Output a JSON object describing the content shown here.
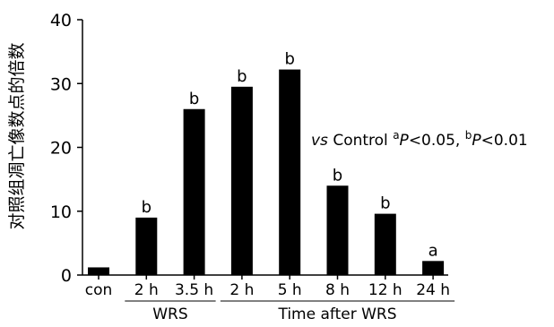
{
  "chart_data": {
    "type": "bar",
    "ylabel": "对照组凋亡像数点的倍数",
    "xlabel": "",
    "ylim": [
      0,
      40
    ],
    "yticks": [
      0,
      10,
      20,
      30,
      40
    ],
    "grid": false,
    "categories": [
      "con",
      "2 h",
      "3.5 h",
      "2 h",
      "5 h",
      "8 h",
      "12 h",
      "24 h"
    ],
    "values": [
      1.2,
      9,
      26,
      29.5,
      32.2,
      14,
      9.6,
      2.2
    ],
    "significance": [
      "",
      "b",
      "b",
      "b",
      "b",
      "b",
      "b",
      "a"
    ],
    "groups": [
      {
        "label": "WRS",
        "categories": [
          "2 h",
          "3.5 h"
        ]
      },
      {
        "label": "Time after WRS",
        "categories": [
          "2 h",
          "5 h",
          "8 h",
          "12 h",
          "24 h"
        ]
      }
    ],
    "annotation": {
      "vs": "vs",
      "text": " Control ",
      "sup_a": "a",
      "p_a": "P",
      "val_a": "<0.05, ",
      "sup_b": "b",
      "p_b": "P",
      "val_b": "<0.01"
    }
  }
}
